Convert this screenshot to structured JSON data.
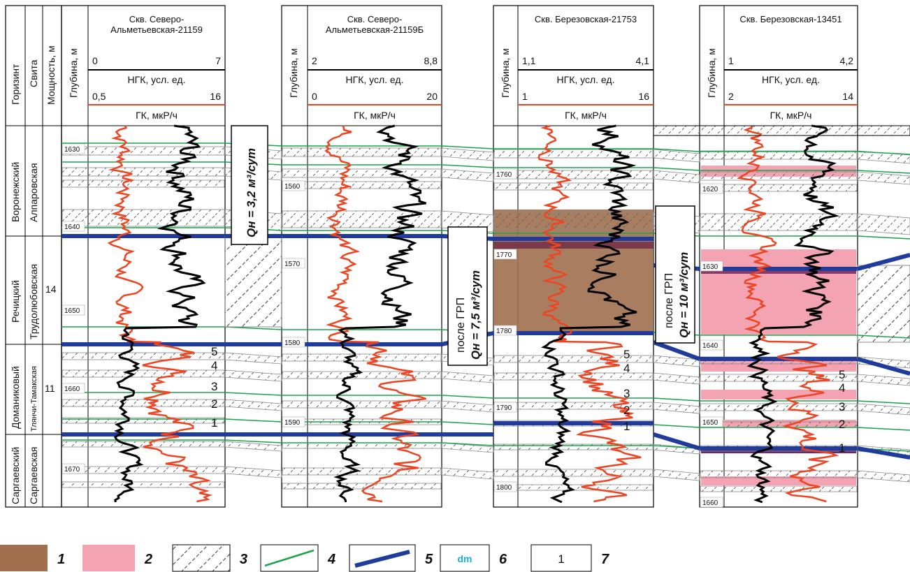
{
  "header": {
    "horizon": "Горизинт",
    "suite": "Свита",
    "thickness": "Мощность, м",
    "depth": "Глубина, м"
  },
  "wells": [
    {
      "name": "Скв. Северо-Альметьевская-21159",
      "name_lines": [
        "Скв. Северо-",
        "Альметьевская-21159"
      ],
      "ngk_min": "0",
      "ngk_max": "7",
      "ngk_label": "НГК, усл. ед.",
      "gk_min": "0,5",
      "gk_max": "16",
      "gk_label": "ГК, мкР/ч",
      "depths": [
        "1630",
        "1640",
        "1650",
        "1660",
        "1670"
      ]
    },
    {
      "name": "Скв. Северо-Альметьевская-21159Б",
      "name_lines": [
        "Скв. Северо-",
        "Альметьевская-21159Б"
      ],
      "ngk_min": "2",
      "ngk_max": "8,8",
      "ngk_label": "НГК, усл. ед.",
      "gk_min": "0",
      "gk_max": "20",
      "gk_label": "ГК, мкР/ч",
      "depths": [
        "1560",
        "1570",
        "1580",
        "1590"
      ]
    },
    {
      "name": "Скв. Березовская-21753",
      "name_lines": [
        "Скв. Березовская-21753"
      ],
      "ngk_min": "1,1",
      "ngk_max": "4,1",
      "ngk_label": "НГК, усл. ед.",
      "gk_min": "1",
      "gk_max": "16",
      "gk_label": "ГК, мкР/ч",
      "depths": [
        "1760",
        "1770",
        "1780",
        "1790",
        "1800"
      ]
    },
    {
      "name": "Скв. Березовская-13451",
      "name_lines": [
        "Скв. Березовская-13451"
      ],
      "ngk_min": "1",
      "ngk_max": "4,2",
      "ngk_label": "НГК, усл. ед.",
      "gk_min": "2",
      "gk_max": "14",
      "gk_label": "ГК, мкР/ч",
      "depths": [
        "1620",
        "1630",
        "1640",
        "1650",
        "1660"
      ]
    }
  ],
  "stratigraphy": [
    {
      "horizon": "Воронежский",
      "suite": "Алпаровская",
      "thickness": ""
    },
    {
      "horizon": "Речицкий",
      "suite": "Трудолюбовская",
      "thickness": "14"
    },
    {
      "horizon": "Доманиковый",
      "suite": "Тлянчи-Тамакская",
      "thickness": "11"
    },
    {
      "horizon": "Саргаевский",
      "suite": "Саргаевская",
      "thickness": ""
    }
  ],
  "annotations": {
    "q1": "Qн = 3,2 м³/сут",
    "q2_line1": "после ГРП",
    "q2_line2": "Qн = 7,5 м³/сут",
    "q3_line1": "после ГРП",
    "q3_line2": "Qн = 10 м³/сут"
  },
  "layer_numbers": [
    "5",
    "4",
    "3",
    "2",
    "1"
  ],
  "legend": [
    {
      "num": "1",
      "kind": "brown-fill"
    },
    {
      "num": "2",
      "kind": "pink-fill"
    },
    {
      "num": "3",
      "kind": "hatch"
    },
    {
      "num": "4",
      "kind": "green-line"
    },
    {
      "num": "5",
      "kind": "blue-line"
    },
    {
      "num": "6",
      "kind": "dm-box",
      "text": "dm"
    },
    {
      "num": "7",
      "kind": "number-box",
      "text": "1"
    }
  ],
  "colors": {
    "brown": "#a0704f",
    "pink": "#f4a3b3",
    "green": "#1aa34a",
    "blue": "#1f3b9c",
    "red": "#ee4422",
    "black": "#000000",
    "cyan": "#1ab0d0"
  }
}
